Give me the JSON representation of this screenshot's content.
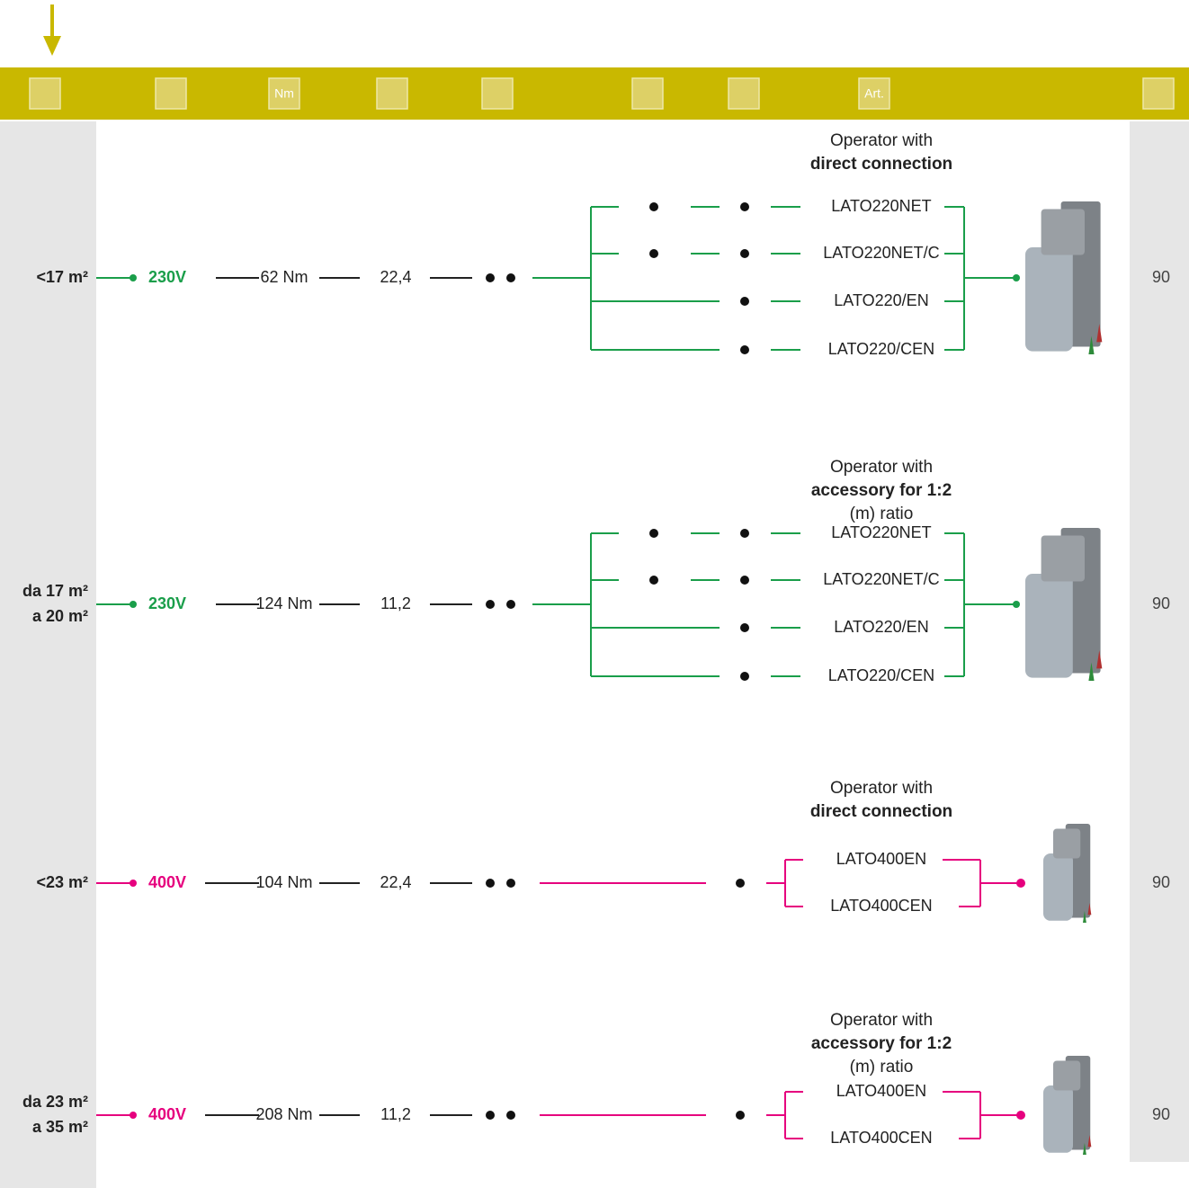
{
  "header": {
    "icon_labels": [
      "Nm",
      "Art."
    ]
  },
  "rows": [
    {
      "area": [
        "<17 m²"
      ],
      "voltage": "230V",
      "torque": "62 Nm",
      "speed": "22,4",
      "description": [
        "Operator with",
        "direct connection"
      ],
      "models": [
        "LATO220NET",
        "LATO220NET/C",
        "LATO220/EN",
        "LATO220/CEN"
      ],
      "page": "90"
    },
    {
      "area": [
        "da 17 m²",
        "a 20 m²"
      ],
      "voltage": "230V",
      "torque": "124 Nm",
      "speed": "11,2",
      "description": [
        "Operator with",
        "accessory for 1:2",
        "(m) ratio"
      ],
      "models": [
        "LATO220NET",
        "LATO220NET/C",
        "LATO220/EN",
        "LATO220/CEN"
      ],
      "page": "90"
    },
    {
      "area": [
        "<23 m²"
      ],
      "voltage": "400V",
      "torque": "104 Nm",
      "speed": "22,4",
      "description": [
        "Operator with",
        "direct connection"
      ],
      "models": [
        "LATO400EN",
        "LATO400CEN"
      ],
      "page": "90"
    },
    {
      "area": [
        "da 23 m²",
        "a 35 m²"
      ],
      "voltage": "400V",
      "torque": "208 Nm",
      "speed": "11,2",
      "description": [
        "Operator with",
        "accessory for 1:2",
        "(m) ratio"
      ],
      "models": [
        "LATO400EN",
        "LATO400CEN"
      ],
      "page": "90"
    }
  ]
}
